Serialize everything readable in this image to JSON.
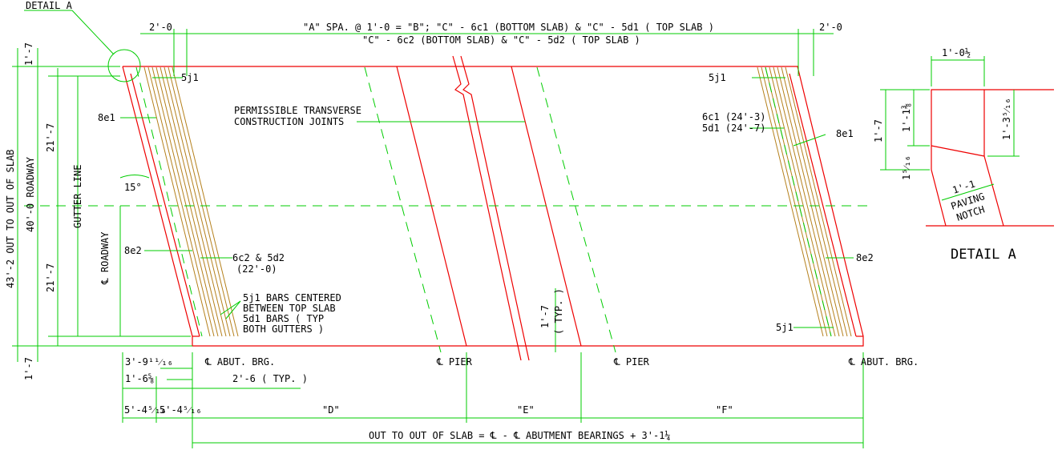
{
  "colors": {
    "dimension": "#00cc00",
    "slab_outline": "#ee0000",
    "rebar": "#b5801c",
    "text": "#000000",
    "background": "#ffffff"
  },
  "labels": {
    "detail_a_callout": "DETAIL A",
    "top_dim_1": "\"A\" SPA. @ 1'-0 = \"B\"; \"C\" - 6c1 (BOTTOM SLAB) & \"C\" - 5d1 ( TOP SLAB )",
    "top_dim_2": "\"C\" - 6c2 (BOTTOM SLAB) & \"C\" - 5d2 ( TOP SLAB )",
    "dim_2_0_left": "2'-0",
    "dim_2_0_right": "2'-0",
    "dim_1_7_top": "1'-7",
    "dim_1_7_bottom": "1'-7",
    "out_to_out_width": "43'-2 OUT TO OUT OF SLAB",
    "roadway_width": "40'-0 ROADWAY",
    "half_roadway_top": "21'-7",
    "half_roadway_bottom": "21'-7",
    "gutter_line": "GUTTER LINE",
    "cl_roadway": "℄ ROADWAY",
    "skew_angle": "15°",
    "bar_5j1_tl": "5j1",
    "bar_8e1_left": "8e1",
    "bar_8e2_left": "8e2",
    "permissible_1": "PERMISSIBLE TRANSVERSE",
    "permissible_2": "CONSTRUCTION JOINTS",
    "bar_6c2_1": "6c2 & 5d2",
    "bar_6c2_2": "(22'-0)",
    "note_5j1_1": "5j1 BARS CENTERED",
    "note_5j1_2": "BETWEEN TOP SLAB",
    "note_5j1_3": "5d1 BARS ( TYP",
    "note_5j1_4": "BOTH GUTTERS )",
    "typ_1_7": "1'-7",
    "typ_label": "( TYP. )",
    "bar_5j1_tr": "5j1",
    "bar_6c1": "6c1 (24'-3)",
    "bar_5d1": "5d1 (24'-7)",
    "bar_8e1_right": "8e1",
    "bar_8e2_right": "8e2",
    "bar_5j1_br": "5j1",
    "abut_brg_left": "℄ ABUT. BRG.",
    "pier_left": "℄ PIER",
    "pier_right": "℄ PIER",
    "abut_brg_right": "℄ ABUT. BRG.",
    "dim_3_9": "3'-9¹¹⁄₁₆",
    "dim_1_6": "1'-6⅝",
    "dim_2_6_typ": "2'-6 ( TYP. )",
    "dim_5_4_a": "5'-4⁵⁄₁₆",
    "dim_5_4_b": "5'-4⁵⁄₁₆",
    "span_d": "\"D\"",
    "span_e": "\"E\"",
    "span_f": "\"F\"",
    "out_to_out_bottom": "OUT TO OUT OF SLAB = ℄ - ℄ ABUTMENT BEARINGS + 3'-1¼",
    "detail_1_0": "1'-0½",
    "detail_1_7": "1'-7",
    "detail_1_1_3_8": "1'-1⅜",
    "detail_1_3": "1'-3⁵⁄₁₆",
    "detail_1_5_16": "1⁵⁄₁₆",
    "detail_1_1": "1'-1",
    "paving_1": "PAVING",
    "paving_2": "NOTCH",
    "detail_a_title": "DETAIL A"
  }
}
